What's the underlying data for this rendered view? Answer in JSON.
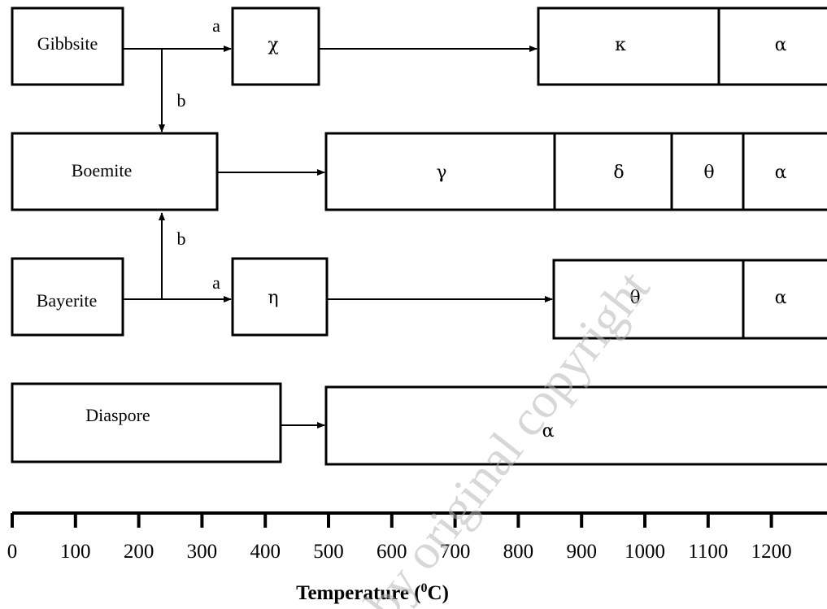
{
  "minerals": {
    "gibbsite": "Gibbsite",
    "boemite": "Boemite",
    "bayerite": "Bayerite",
    "diaspore": "Diaspore"
  },
  "route_labels": {
    "gibbsite_a": "a",
    "gibbsite_b": "b",
    "bayerite_b": "b",
    "bayerite_a": "a"
  },
  "phases": {
    "gibbsite": [
      "χ",
      "κ",
      "α"
    ],
    "boemite": [
      "γ",
      "δ",
      "θ",
      "α"
    ],
    "bayerite": [
      "η",
      "θ",
      "α"
    ],
    "diaspore": [
      "α"
    ]
  },
  "axis": {
    "title_main": "Temperature (",
    "title_sup": "0",
    "title_end": "C)",
    "ticks": [
      "0",
      "100",
      "200",
      "300",
      "400",
      "500",
      "600",
      "700",
      "800",
      "900",
      "1000",
      "1100",
      "1200"
    ]
  },
  "watermark": "by original copyright",
  "colors": {
    "line": "#000000",
    "background": "#ffffff",
    "watermark": "#b8b8b8"
  }
}
